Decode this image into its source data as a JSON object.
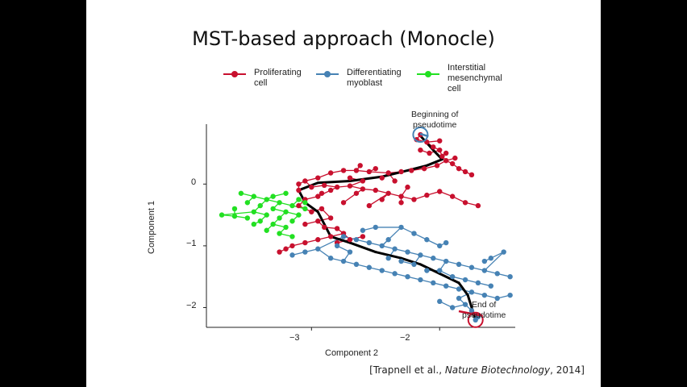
{
  "slide": {
    "title": "MST-based approach (Monocle)",
    "citation_prefix": "[Trapnell et al., ",
    "citation_journal": "Nature Biotechnology",
    "citation_suffix": ", 2014]"
  },
  "chart_data": {
    "type": "scatter",
    "title": "",
    "xlabel": "Component 2",
    "ylabel": "Component 1",
    "x_ticks": [
      "−3",
      "−2"
    ],
    "y_ticks": [
      "0",
      "−1",
      "−2"
    ],
    "xlim": [
      -3.82,
      -1.41
    ],
    "ylim": [
      -2.32,
      0.97
    ],
    "legend_position": "top",
    "series": [
      {
        "name_line1": "Proliferating",
        "name_line2": "cell",
        "color": "#c8102e",
        "points": [
          [
            -2.15,
            0.8
          ],
          [
            -2.18,
            0.72
          ],
          [
            -2.1,
            0.68
          ],
          [
            -2.05,
            0.6
          ],
          [
            -2.0,
            0.55
          ],
          [
            -2.08,
            0.5
          ],
          [
            -1.98,
            0.45
          ],
          [
            -1.95,
            0.38
          ],
          [
            -1.9,
            0.33
          ],
          [
            -1.85,
            0.25
          ],
          [
            -1.8,
            0.2
          ],
          [
            -1.75,
            0.15
          ],
          [
            -2.02,
            0.3
          ],
          [
            -2.12,
            0.25
          ],
          [
            -2.22,
            0.22
          ],
          [
            -2.3,
            0.2
          ],
          [
            -2.4,
            0.18
          ],
          [
            -2.55,
            0.2
          ],
          [
            -2.65,
            0.22
          ],
          [
            -2.75,
            0.22
          ],
          [
            -2.85,
            0.18
          ],
          [
            -2.95,
            0.1
          ],
          [
            -3.05,
            0.05
          ],
          [
            -3.1,
            0.0
          ],
          [
            -3.0,
            -0.05
          ],
          [
            -2.9,
            -0.02
          ],
          [
            -2.8,
            -0.05
          ],
          [
            -2.7,
            -0.03
          ],
          [
            -2.6,
            -0.08
          ],
          [
            -2.5,
            -0.1
          ],
          [
            -2.4,
            -0.15
          ],
          [
            -2.3,
            -0.2
          ],
          [
            -2.2,
            -0.25
          ],
          [
            -2.1,
            -0.18
          ],
          [
            -2.0,
            -0.12
          ],
          [
            -1.9,
            -0.2
          ],
          [
            -1.8,
            -0.3
          ],
          [
            -1.7,
            -0.35
          ],
          [
            -2.25,
            -0.05
          ],
          [
            -2.35,
            0.05
          ],
          [
            -2.45,
            0.1
          ],
          [
            -2.6,
            0.05
          ],
          [
            -2.7,
            0.1
          ],
          [
            -2.85,
            -0.1
          ],
          [
            -2.95,
            -0.2
          ],
          [
            -3.05,
            -0.25
          ],
          [
            -3.1,
            -0.35
          ],
          [
            -3.0,
            -0.45
          ],
          [
            -2.92,
            -0.4
          ],
          [
            -2.85,
            -0.55
          ],
          [
            -2.95,
            -0.6
          ],
          [
            -3.05,
            -0.65
          ],
          [
            -2.9,
            -0.7
          ],
          [
            -2.8,
            -0.72
          ],
          [
            -2.75,
            -0.8
          ],
          [
            -2.85,
            -0.85
          ],
          [
            -2.95,
            -0.9
          ],
          [
            -3.05,
            -0.95
          ],
          [
            -3.15,
            -1.0
          ],
          [
            -3.2,
            -1.05
          ],
          [
            -3.25,
            -1.1
          ],
          [
            -2.7,
            -0.9
          ],
          [
            -2.6,
            -0.85
          ],
          [
            -2.8,
            -0.95
          ],
          [
            -2.3,
            -0.3
          ],
          [
            -2.55,
            -0.35
          ],
          [
            -2.65,
            -0.15
          ],
          [
            -2.15,
            0.55
          ],
          [
            -2.0,
            0.7
          ],
          [
            -1.95,
            0.5
          ],
          [
            -1.88,
            0.42
          ],
          [
            -2.45,
            -0.25
          ],
          [
            -2.75,
            -0.3
          ],
          [
            -2.92,
            -0.15
          ],
          [
            -3.1,
            -0.1
          ],
          [
            -2.5,
            0.25
          ],
          [
            -2.62,
            0.3
          ]
        ]
      },
      {
        "name_line1": "Differentiating",
        "name_line2": "myoblast",
        "color": "#4682b4",
        "points": [
          [
            -2.75,
            -0.85
          ],
          [
            -2.65,
            -0.9
          ],
          [
            -2.55,
            -0.95
          ],
          [
            -2.45,
            -1.0
          ],
          [
            -2.35,
            -1.05
          ],
          [
            -2.25,
            -1.1
          ],
          [
            -2.15,
            -1.15
          ],
          [
            -2.05,
            -1.2
          ],
          [
            -1.95,
            -1.25
          ],
          [
            -1.85,
            -1.3
          ],
          [
            -1.75,
            -1.35
          ],
          [
            -1.65,
            -1.4
          ],
          [
            -1.55,
            -1.45
          ],
          [
            -1.45,
            -1.5
          ],
          [
            -2.95,
            -1.05
          ],
          [
            -3.05,
            -1.1
          ],
          [
            -3.15,
            -1.15
          ],
          [
            -2.85,
            -1.2
          ],
          [
            -2.75,
            -1.25
          ],
          [
            -2.65,
            -1.3
          ],
          [
            -2.55,
            -1.35
          ],
          [
            -2.45,
            -1.4
          ],
          [
            -2.35,
            -1.45
          ],
          [
            -2.25,
            -1.5
          ],
          [
            -2.15,
            -1.55
          ],
          [
            -2.05,
            -1.6
          ],
          [
            -1.95,
            -1.65
          ],
          [
            -1.85,
            -1.7
          ],
          [
            -1.75,
            -1.75
          ],
          [
            -1.65,
            -1.8
          ],
          [
            -1.55,
            -1.85
          ],
          [
            -1.45,
            -1.8
          ],
          [
            -2.3,
            -0.7
          ],
          [
            -2.2,
            -0.8
          ],
          [
            -2.1,
            -0.9
          ],
          [
            -2.0,
            -1.0
          ],
          [
            -1.95,
            -0.95
          ],
          [
            -2.5,
            -0.7
          ],
          [
            -2.6,
            -0.75
          ],
          [
            -2.4,
            -0.9
          ],
          [
            -2.0,
            -1.4
          ],
          [
            -1.9,
            -1.5
          ],
          [
            -1.8,
            -1.55
          ],
          [
            -1.7,
            -1.6
          ],
          [
            -1.6,
            -1.65
          ],
          [
            -1.85,
            -1.85
          ],
          [
            -1.8,
            -1.95
          ],
          [
            -1.75,
            -2.05
          ],
          [
            -1.7,
            -2.15
          ],
          [
            -1.72,
            -2.2
          ],
          [
            -1.9,
            -2.0
          ],
          [
            -2.0,
            -1.9
          ],
          [
            -1.5,
            -1.1
          ],
          [
            -1.6,
            -1.2
          ],
          [
            -2.7,
            -1.1
          ],
          [
            -2.8,
            -1.0
          ],
          [
            -2.2,
            -1.3
          ],
          [
            -2.1,
            -1.4
          ],
          [
            -2.4,
            -1.2
          ],
          [
            -2.3,
            -1.25
          ],
          [
            -1.65,
            -1.25
          ]
        ]
      },
      {
        "name_line1": "Interstitial",
        "name_line2": "mesenchymal",
        "name_line3": "cell",
        "color": "#22e022",
        "points": [
          [
            -3.55,
            -0.15
          ],
          [
            -3.45,
            -0.2
          ],
          [
            -3.35,
            -0.25
          ],
          [
            -3.25,
            -0.3
          ],
          [
            -3.15,
            -0.35
          ],
          [
            -3.5,
            -0.3
          ],
          [
            -3.4,
            -0.35
          ],
          [
            -3.3,
            -0.4
          ],
          [
            -3.2,
            -0.45
          ],
          [
            -3.1,
            -0.5
          ],
          [
            -3.45,
            -0.45
          ],
          [
            -3.35,
            -0.5
          ],
          [
            -3.25,
            -0.55
          ],
          [
            -3.15,
            -0.6
          ],
          [
            -3.4,
            -0.6
          ],
          [
            -3.3,
            -0.65
          ],
          [
            -3.2,
            -0.7
          ],
          [
            -3.35,
            -0.75
          ],
          [
            -3.25,
            -0.8
          ],
          [
            -3.15,
            -0.85
          ],
          [
            -3.7,
            -0.5
          ],
          [
            -3.6,
            -0.52
          ],
          [
            -3.5,
            -0.55
          ],
          [
            -3.3,
            -0.2
          ],
          [
            -3.2,
            -0.15
          ],
          [
            -3.1,
            -0.25
          ],
          [
            -3.05,
            -0.4
          ],
          [
            -3.6,
            -0.4
          ],
          [
            -3.45,
            -0.65
          ],
          [
            -3.05,
            -0.3
          ]
        ]
      }
    ],
    "annotations": [
      {
        "line1": "Beginning of",
        "line2": "pseudotime"
      },
      {
        "line1": "End of",
        "line2": "pseudotime"
      }
    ]
  }
}
